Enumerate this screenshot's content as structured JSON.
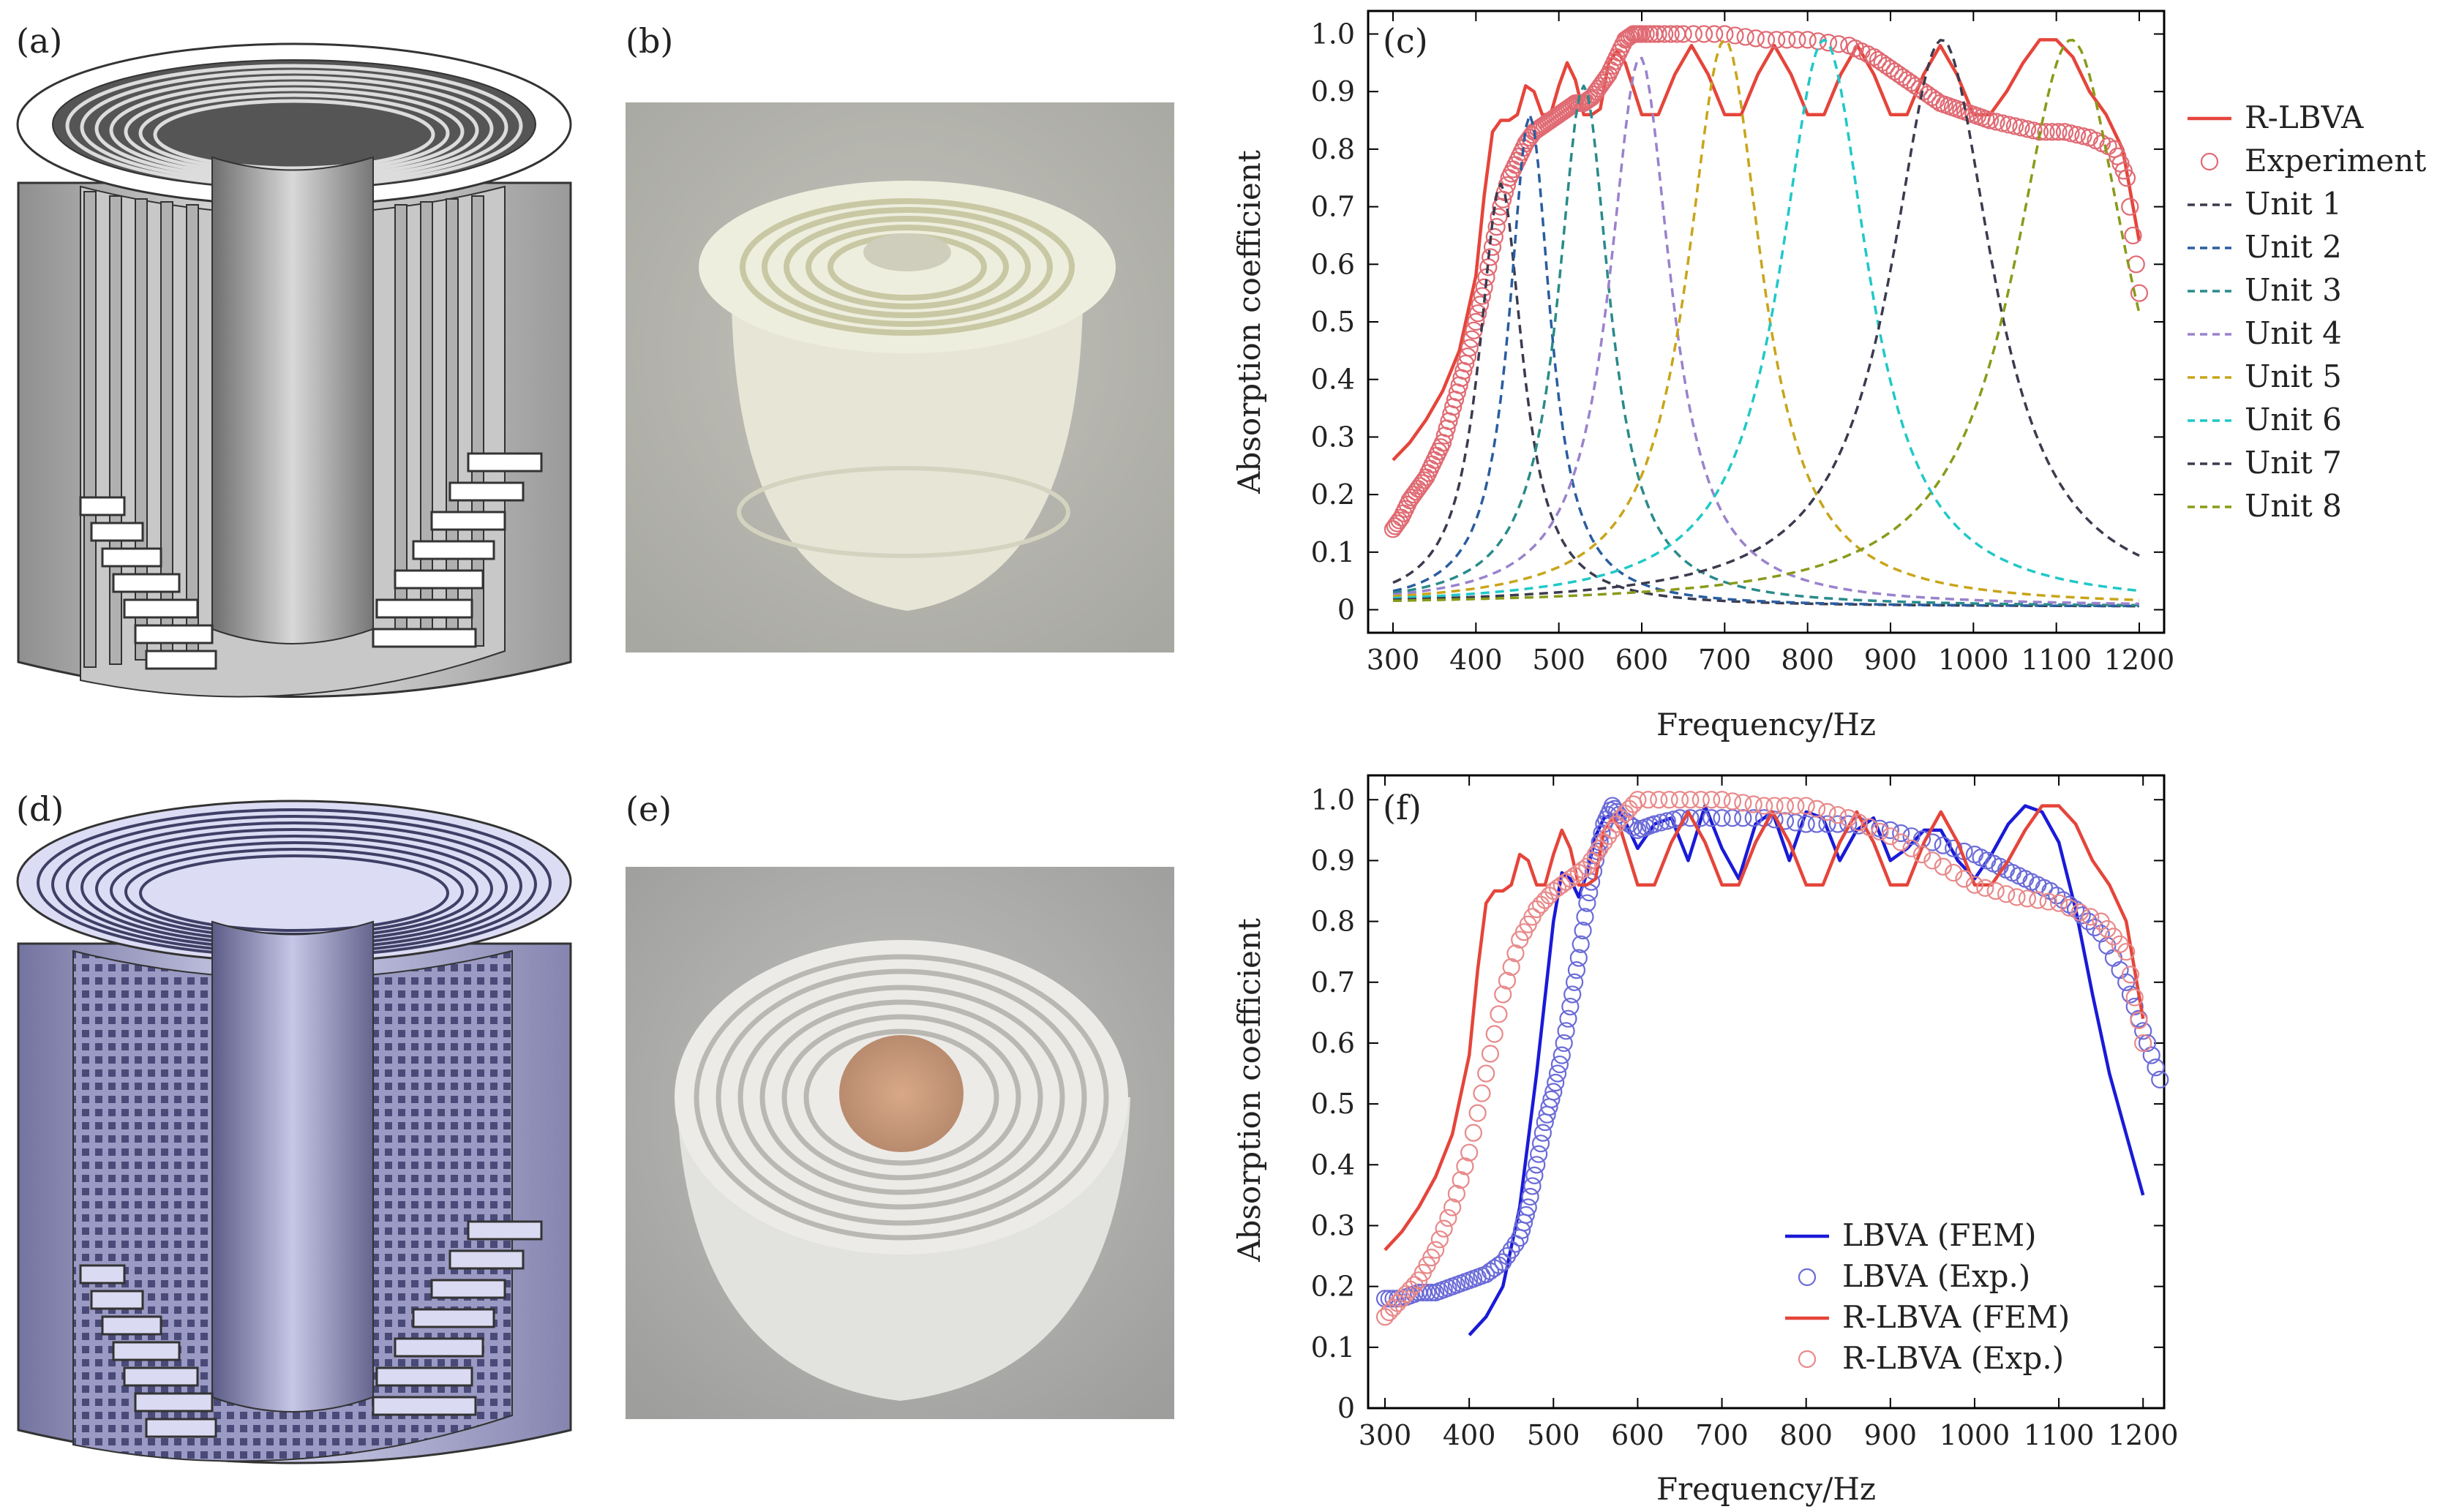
{
  "panels": {
    "a": {
      "label": "(a)"
    },
    "b": {
      "label": "(b)"
    },
    "d": {
      "label": "(d)"
    },
    "e": {
      "label": "(e)"
    }
  },
  "colors": {
    "rlbva": "#e5453b",
    "rlbva_exp": "#e8898a",
    "lbva": "#1a1ad8",
    "lbva_exp": "#6b6bd8",
    "experiment_c": "#e06a73",
    "units": [
      "#3b3b4f",
      "#2a5d9f",
      "#2a8a8a",
      "#9a82cc",
      "#c8a51a",
      "#20c8c8",
      "#3b3b4f",
      "#8a9a1a"
    ]
  },
  "chart_data": [
    {
      "type": "line",
      "panel": "c",
      "label": "(c)",
      "xlabel": "Frequency/Hz",
      "ylabel": "Absorption coefficient",
      "xlim": [
        270,
        1230
      ],
      "ylim": [
        -0.04,
        1.04
      ],
      "xticks": [
        300,
        400,
        500,
        600,
        700,
        800,
        900,
        1000,
        1100,
        1200
      ],
      "yticks": [
        0,
        0.1,
        0.2,
        0.3,
        0.4,
        0.5,
        0.6,
        0.7,
        0.8,
        0.9,
        1.0
      ],
      "ytick_labels": [
        "0",
        "0.1",
        "0.2",
        "0.3",
        "0.4",
        "0.5",
        "0.6",
        "0.7",
        "0.8",
        "0.9",
        "1.0"
      ],
      "legend_position": "outside-right",
      "legend": [
        "R-LBVA",
        "Experiment",
        "Unit 1",
        "Unit 2",
        "Unit 3",
        "Unit 4",
        "Unit 5",
        "Unit 6",
        "Unit 7",
        "Unit 8"
      ],
      "series": [
        {
          "name": "R-LBVA",
          "style": "solid",
          "x": [
            300,
            320,
            340,
            360,
            380,
            400,
            410,
            420,
            430,
            440,
            450,
            460,
            470,
            480,
            490,
            500,
            510,
            520,
            530,
            540,
            550,
            560,
            570,
            580,
            600,
            620,
            640,
            660,
            680,
            700,
            720,
            740,
            760,
            780,
            800,
            820,
            840,
            860,
            880,
            900,
            920,
            940,
            960,
            980,
            1000,
            1020,
            1040,
            1060,
            1080,
            1100,
            1120,
            1140,
            1160,
            1180,
            1200
          ],
          "y": [
            0.26,
            0.29,
            0.33,
            0.38,
            0.45,
            0.58,
            0.72,
            0.83,
            0.85,
            0.85,
            0.86,
            0.91,
            0.9,
            0.86,
            0.86,
            0.91,
            0.95,
            0.92,
            0.86,
            0.86,
            0.87,
            0.95,
            0.97,
            0.95,
            0.86,
            0.86,
            0.93,
            0.98,
            0.93,
            0.86,
            0.86,
            0.93,
            0.98,
            0.93,
            0.86,
            0.86,
            0.93,
            0.98,
            0.93,
            0.86,
            0.86,
            0.93,
            0.98,
            0.93,
            0.86,
            0.86,
            0.9,
            0.95,
            0.99,
            0.99,
            0.96,
            0.9,
            0.86,
            0.8,
            0.64
          ]
        },
        {
          "name": "Experiment",
          "style": "markers",
          "x": [
            300,
            310,
            320,
            330,
            340,
            350,
            360,
            370,
            380,
            390,
            400,
            410,
            420,
            430,
            440,
            450,
            460,
            470,
            480,
            490,
            500,
            510,
            520,
            530,
            540,
            550,
            560,
            570,
            580,
            590,
            600,
            620,
            650,
            700,
            750,
            800,
            850,
            880,
            900,
            920,
            940,
            960,
            980,
            1000,
            1020,
            1050,
            1080,
            1110,
            1140,
            1170,
            1185,
            1200
          ],
          "y": [
            0.14,
            0.16,
            0.19,
            0.21,
            0.23,
            0.26,
            0.29,
            0.34,
            0.39,
            0.44,
            0.5,
            0.56,
            0.63,
            0.7,
            0.75,
            0.78,
            0.81,
            0.83,
            0.84,
            0.85,
            0.86,
            0.87,
            0.88,
            0.88,
            0.89,
            0.91,
            0.93,
            0.96,
            0.99,
            1.0,
            1.0,
            1.0,
            1.0,
            1.0,
            0.99,
            0.99,
            0.98,
            0.96,
            0.94,
            0.92,
            0.9,
            0.88,
            0.87,
            0.86,
            0.85,
            0.84,
            0.83,
            0.83,
            0.82,
            0.8,
            0.75,
            0.55
          ]
        },
        {
          "name": "Unit 1",
          "style": "dashed",
          "peak_x": 430,
          "peak_y": 0.74,
          "width": 32,
          "base": 0.005
        },
        {
          "name": "Unit 2",
          "style": "dashed",
          "peak_x": 465,
          "peak_y": 0.86,
          "width": 30,
          "base": 0.005
        },
        {
          "name": "Unit 3",
          "style": "dashed",
          "peak_x": 530,
          "peak_y": 0.91,
          "width": 38,
          "base": 0.005
        },
        {
          "name": "Unit 4",
          "style": "dashed",
          "peak_x": 598,
          "peak_y": 0.96,
          "width": 45,
          "base": 0.005
        },
        {
          "name": "Unit 5",
          "style": "dashed",
          "peak_x": 700,
          "peak_y": 0.99,
          "width": 55,
          "base": 0.005
        },
        {
          "name": "Unit 6",
          "style": "dashed",
          "peak_x": 820,
          "peak_y": 0.99,
          "width": 65,
          "base": 0.005
        },
        {
          "name": "Unit 7",
          "style": "dashed",
          "peak_x": 962,
          "peak_y": 0.99,
          "width": 75,
          "base": 0.005
        },
        {
          "name": "Unit 8",
          "style": "dashed",
          "peak_x": 1118,
          "peak_y": 0.99,
          "width": 85,
          "base": 0.005
        }
      ]
    },
    {
      "type": "line",
      "panel": "f",
      "label": "(f)",
      "xlabel": "Frequency/Hz",
      "ylabel": "Absorption coefficient",
      "xlim": [
        280,
        1225
      ],
      "ylim": [
        0,
        1.04
      ],
      "xticks": [
        300,
        400,
        500,
        600,
        700,
        800,
        900,
        1000,
        1100,
        1200
      ],
      "yticks": [
        0,
        0.1,
        0.2,
        0.3,
        0.4,
        0.5,
        0.6,
        0.7,
        0.8,
        0.9,
        1.0
      ],
      "ytick_labels": [
        "0",
        "0.1",
        "0.2",
        "0.3",
        "0.4",
        "0.5",
        "0.6",
        "0.7",
        "0.8",
        "0.9",
        "1.0"
      ],
      "legend_position": "bottom-right",
      "legend": [
        "LBVA (FEM)",
        "LBVA (Exp.)",
        "R-LBVA (FEM)",
        "R-LBVA (Exp.)"
      ],
      "series": [
        {
          "name": "LBVA (FEM)",
          "style": "solid",
          "x": [
            400,
            420,
            440,
            460,
            480,
            500,
            510,
            520,
            530,
            540,
            550,
            560,
            580,
            600,
            620,
            640,
            660,
            680,
            700,
            720,
            740,
            760,
            780,
            800,
            820,
            840,
            860,
            880,
            900,
            920,
            940,
            960,
            980,
            1000,
            1020,
            1040,
            1060,
            1080,
            1100,
            1120,
            1140,
            1160,
            1180,
            1200
          ],
          "y": [
            0.12,
            0.15,
            0.2,
            0.33,
            0.55,
            0.8,
            0.88,
            0.87,
            0.84,
            0.88,
            0.94,
            0.97,
            0.98,
            0.92,
            0.96,
            0.97,
            0.9,
            0.99,
            0.92,
            0.87,
            0.96,
            0.98,
            0.9,
            0.98,
            0.97,
            0.9,
            0.95,
            0.97,
            0.9,
            0.92,
            0.95,
            0.95,
            0.9,
            0.87,
            0.91,
            0.96,
            0.99,
            0.98,
            0.93,
            0.82,
            0.68,
            0.55,
            0.45,
            0.35
          ]
        },
        {
          "name": "LBVA (Exp.)",
          "style": "markers",
          "x": [
            300,
            320,
            340,
            360,
            380,
            400,
            420,
            440,
            460,
            470,
            480,
            490,
            500,
            510,
            520,
            530,
            540,
            550,
            560,
            570,
            580,
            600,
            620,
            650,
            700,
            750,
            800,
            850,
            900,
            950,
            1000,
            1030,
            1060,
            1090,
            1120,
            1150,
            1180,
            1200,
            1220
          ],
          "y": [
            0.18,
            0.18,
            0.19,
            0.19,
            0.2,
            0.21,
            0.22,
            0.24,
            0.28,
            0.33,
            0.4,
            0.47,
            0.52,
            0.58,
            0.66,
            0.74,
            0.83,
            0.9,
            0.96,
            0.99,
            0.97,
            0.95,
            0.96,
            0.97,
            0.97,
            0.97,
            0.96,
            0.96,
            0.95,
            0.93,
            0.91,
            0.89,
            0.87,
            0.85,
            0.82,
            0.78,
            0.7,
            0.62,
            0.54
          ]
        },
        {
          "name": "R-LBVA (FEM)",
          "style": "solid",
          "x": [
            300,
            320,
            340,
            360,
            380,
            400,
            410,
            420,
            430,
            440,
            450,
            460,
            470,
            480,
            490,
            500,
            510,
            520,
            530,
            540,
            550,
            560,
            570,
            580,
            600,
            620,
            640,
            660,
            680,
            700,
            720,
            740,
            760,
            780,
            800,
            820,
            840,
            860,
            880,
            900,
            920,
            940,
            960,
            980,
            1000,
            1020,
            1040,
            1060,
            1080,
            1100,
            1120,
            1140,
            1160,
            1180,
            1200
          ],
          "y": [
            0.26,
            0.29,
            0.33,
            0.38,
            0.45,
            0.58,
            0.72,
            0.83,
            0.85,
            0.85,
            0.86,
            0.91,
            0.9,
            0.86,
            0.86,
            0.91,
            0.95,
            0.92,
            0.86,
            0.86,
            0.87,
            0.95,
            0.97,
            0.95,
            0.86,
            0.86,
            0.93,
            0.98,
            0.93,
            0.86,
            0.86,
            0.93,
            0.98,
            0.93,
            0.86,
            0.86,
            0.93,
            0.98,
            0.93,
            0.86,
            0.86,
            0.93,
            0.98,
            0.93,
            0.86,
            0.86,
            0.9,
            0.95,
            0.99,
            0.99,
            0.96,
            0.9,
            0.86,
            0.8,
            0.64
          ]
        },
        {
          "name": "R-LBVA (Exp.)",
          "style": "markers",
          "x": [
            300,
            320,
            340,
            360,
            380,
            400,
            420,
            440,
            460,
            480,
            500,
            520,
            540,
            560,
            580,
            600,
            650,
            700,
            750,
            800,
            850,
            900,
            950,
            1000,
            1050,
            1100,
            1150,
            1180,
            1200
          ],
          "y": [
            0.15,
            0.18,
            0.21,
            0.26,
            0.33,
            0.42,
            0.55,
            0.68,
            0.77,
            0.82,
            0.85,
            0.87,
            0.89,
            0.93,
            0.97,
            1.0,
            1.0,
            1.0,
            0.99,
            0.99,
            0.97,
            0.94,
            0.9,
            0.86,
            0.84,
            0.83,
            0.8,
            0.75,
            0.6
          ]
        }
      ]
    }
  ]
}
